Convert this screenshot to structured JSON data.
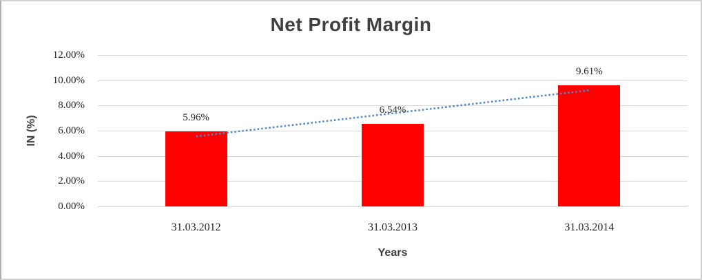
{
  "window": {
    "background_color": "#ffffff",
    "border_color": "#d2d2d2"
  },
  "chart_data": {
    "type": "bar",
    "title": "Net Profit Margin",
    "xlabel": "Years",
    "ylabel": "IN (%)",
    "categories": [
      "31.03.2012",
      "31.03.2013",
      "31.03.2014"
    ],
    "series": [
      {
        "name": "Net Profit Margin",
        "values": [
          5.96,
          6.54,
          9.61
        ],
        "color": "#ff0000"
      }
    ],
    "data_labels": [
      "5.96%",
      "6.54%",
      "9.61%"
    ],
    "y_ticks": [
      "12.00%",
      "10.00%",
      "8.00%",
      "6.00%",
      "4.00%",
      "2.00%",
      "0.00%"
    ],
    "ylim": [
      0,
      12
    ],
    "grid": true,
    "gridline_color": "#d9d9d9",
    "legend": "none",
    "trendline": {
      "type": "linear",
      "style": "dotted",
      "color": "#4e87c9",
      "start_value": 5.55,
      "end_value": 9.21
    },
    "title_color": "#3f3f3f",
    "text_color": "#262626"
  }
}
